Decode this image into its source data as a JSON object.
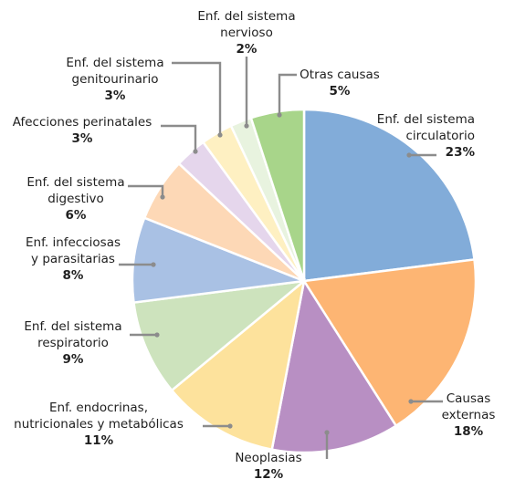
{
  "chart_data": {
    "type": "pie",
    "unit": "%",
    "slices": [
      {
        "name": [
          "Enf. del sistema",
          "circulatorio"
        ],
        "value": 23,
        "pct_label": "23%",
        "color": "#82acd9"
      },
      {
        "name": [
          "Causas",
          "externas"
        ],
        "value": 18,
        "pct_label": "18%",
        "color": "#fdb573"
      },
      {
        "name": [
          "Neoplasias"
        ],
        "value": 12,
        "pct_label": "12%",
        "color": "#b88fc3"
      },
      {
        "name": [
          "Enf. endocrinas,",
          "nutricionales y metabólicas"
        ],
        "value": 11,
        "pct_label": "11%",
        "color": "#fde29c"
      },
      {
        "name": [
          "Enf. del sistema",
          "respiratorio"
        ],
        "value": 9,
        "pct_label": "9%",
        "color": "#cde3bd"
      },
      {
        "name": [
          "Enf. infecciosas",
          "y parasitarias"
        ],
        "value": 8,
        "pct_label": "8%",
        "color": "#a9c1e4"
      },
      {
        "name": [
          "Enf. del sistema",
          "digestivo"
        ],
        "value": 6,
        "pct_label": "6%",
        "color": "#fdd8b6"
      },
      {
        "name": [
          "Afecciones perinatales"
        ],
        "value": 3,
        "pct_label": "3%",
        "color": "#e5d6ec"
      },
      {
        "name": [
          "Enf. del sistema",
          "genitourinario"
        ],
        "value": 3,
        "pct_label": "3%",
        "color": "#fef0c2"
      },
      {
        "name": [
          "Enf. del sistema",
          "nervioso"
        ],
        "value": 2,
        "pct_label": "2%",
        "color": "#e8f3df"
      },
      {
        "name": [
          "Otras causas"
        ],
        "value": 5,
        "pct_label": "5%",
        "color": "#a8d58a"
      }
    ]
  }
}
